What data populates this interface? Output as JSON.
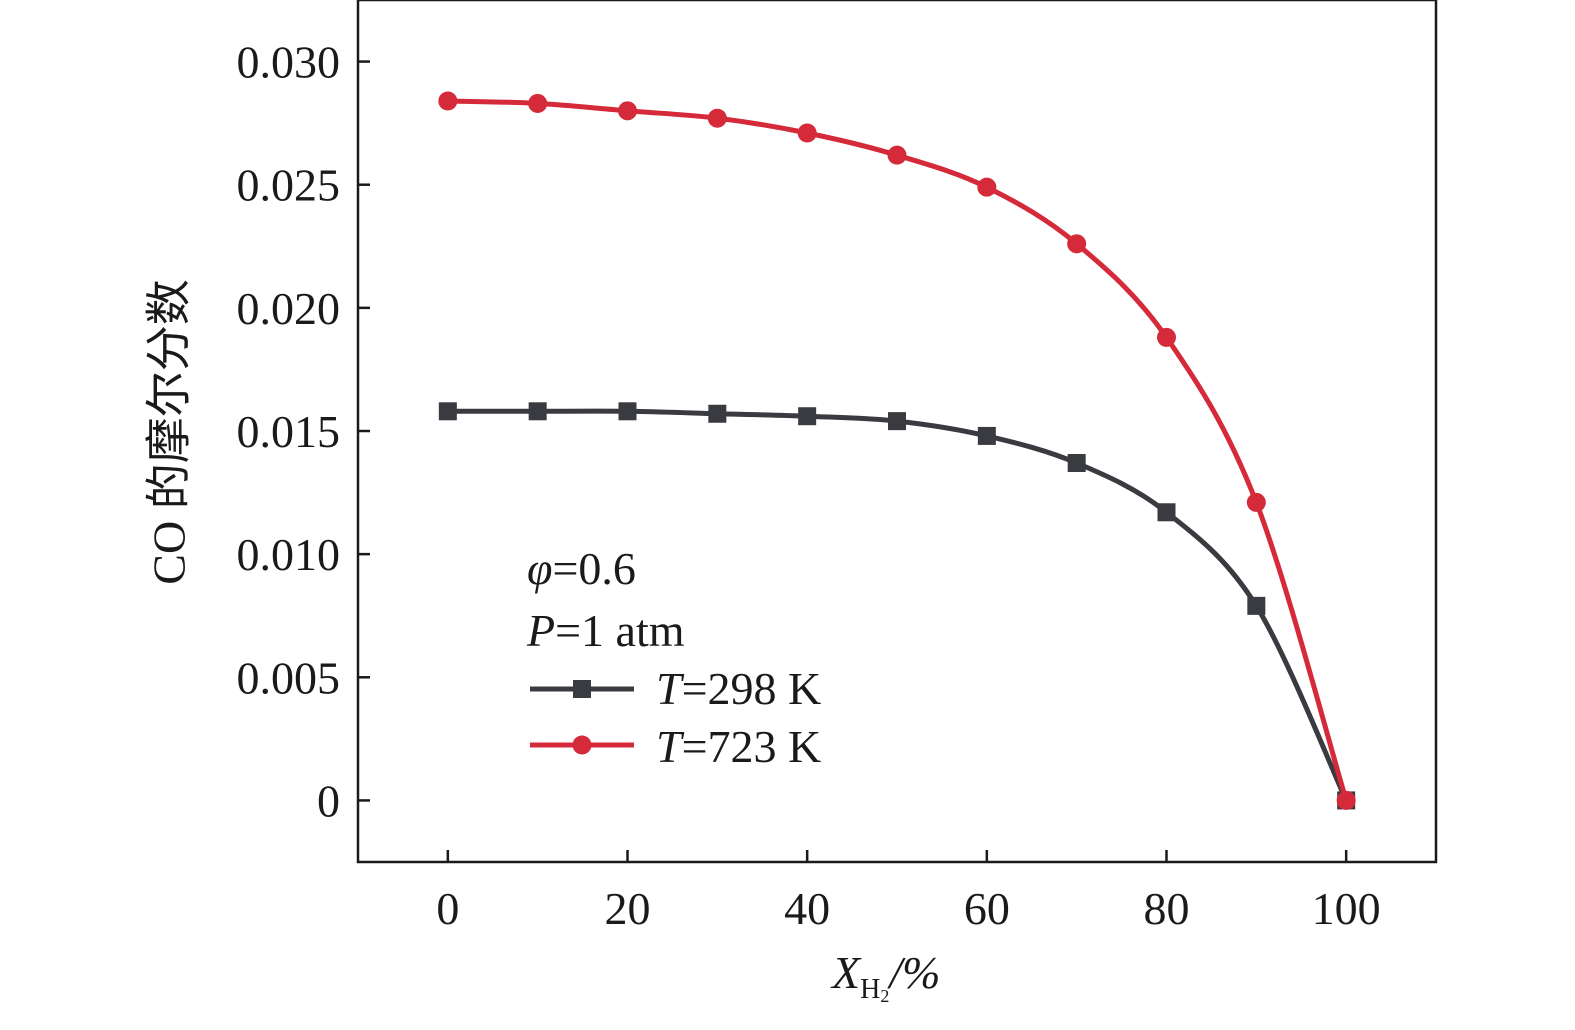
{
  "chart_data": {
    "type": "line",
    "x": [
      0,
      10,
      20,
      30,
      40,
      50,
      60,
      70,
      80,
      90,
      100
    ],
    "series": [
      {
        "name_prefix": "T",
        "name_suffix": "=298 K",
        "marker": "square",
        "color": "#3a3b40",
        "values": [
          0.0158,
          0.0158,
          0.0158,
          0.0157,
          0.0156,
          0.0154,
          0.0148,
          0.0137,
          0.0117,
          0.0079,
          0.0
        ]
      },
      {
        "name_prefix": "T",
        "name_suffix": "=723 K",
        "marker": "circle",
        "color": "#d42a3a",
        "values": [
          0.0284,
          0.0283,
          0.028,
          0.0277,
          0.0271,
          0.0262,
          0.0249,
          0.0226,
          0.0188,
          0.0121,
          0.0
        ]
      }
    ],
    "xlabel_main": "X",
    "xlabel_sub": "H",
    "xlabel_subsub": "2",
    "xlabel_unit": "/%",
    "ylabel": "CO 的摩尔分数",
    "xlim": [
      -10,
      110
    ],
    "ylim": [
      -0.0025,
      0.0325
    ],
    "xticks": [
      "0",
      "20",
      "40",
      "60",
      "80",
      "100"
    ],
    "xtick_values": [
      0,
      20,
      40,
      60,
      80,
      100
    ],
    "yticks": [
      "0",
      "0.005",
      "0.010",
      "0.015",
      "0.020",
      "0.025",
      "0.030"
    ],
    "ytick_values": [
      0,
      0.005,
      0.01,
      0.015,
      0.02,
      0.025,
      0.03
    ],
    "annotations": [
      {
        "sym": "φ",
        "rest": "=0.6"
      },
      {
        "sym": "P",
        "rest": "=1 atm"
      }
    ],
    "legend_position": "bottom-left",
    "grid": false
  }
}
